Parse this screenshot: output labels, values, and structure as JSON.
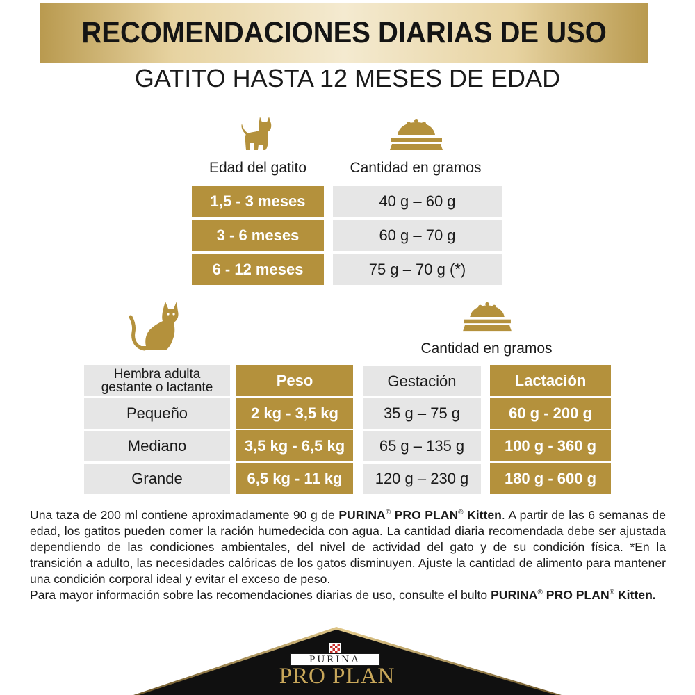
{
  "header": {
    "title": "RECOMENDACIONES DIARIAS DE USO",
    "subtitle": "GATITO HASTA 12 MESES DE EDAD"
  },
  "kitten_table": {
    "age_header": "Edad del gatito",
    "amount_header": "Cantidad en gramos",
    "rows": [
      {
        "age": "1,5 - 3 meses",
        "amount": "40 g – 60 g"
      },
      {
        "age": "3 - 6 meses",
        "amount": "60 g – 70 g"
      },
      {
        "age": "6 - 12 meses",
        "amount": "75 g – 70 g (*)"
      }
    ]
  },
  "adult_table": {
    "amount_header": "Cantidad en gramos",
    "col_female": "Hembra adulta gestante o lactante",
    "col_weight": "Peso",
    "col_gestation": "Gestación",
    "col_lactation": "Lactación",
    "rows": [
      {
        "size": "Pequeño",
        "weight": "2 kg - 3,5 kg",
        "gestation": "35 g – 75 g",
        "lactation": "60 g -  200 g"
      },
      {
        "size": "Mediano",
        "weight": "3,5 kg - 6,5 kg",
        "gestation": "65 g – 135 g",
        "lactation": "100 g - 360 g"
      },
      {
        "size": "Grande",
        "weight": "6,5 kg - 11 kg",
        "gestation": "120 g – 230 g",
        "lactation": "180 g - 600 g"
      }
    ]
  },
  "notes": {
    "p1_a": "Una taza de 200 ml contiene aproximadamente 90 g de ",
    "brand_1": "PURINA",
    "reg_1": "®",
    "brand_2": "PRO PLAN",
    "reg_2": "®",
    "product": "Kitten",
    "p1_b": ". A partir de las 6 semanas de edad, los gatitos pueden comer la ración humedecida con agua. La cantidad diaria recomendada debe ser ajustada dependiendo de las condiciones ambientales, del nivel de actividad del gato y de su condición física. *En la transición a adulto, las necesidades calóricas de los gatos disminuyen. Ajuste la cantidad de alimento para mantener una condición corporal ideal y evitar el exceso de peso.",
    "p2_a": "Para mayor información sobre las recomendaciones diarias de uso, consulte el bulto ",
    "brand_3": "PURINA",
    "reg_3": "®",
    "brand_4": "PRO PLAN",
    "reg_4": "®",
    "product_2": "Kitten."
  },
  "logo": {
    "brand_small": "PURINA",
    "brand_main": "PRO PLAN"
  },
  "colors": {
    "gold": "#b4913c",
    "grey_cell": "#e6e6e6",
    "banner_gold": "#e7d3a1",
    "footer_dark": "#101010"
  },
  "icons": [
    "kitten-icon",
    "food-bowl-icon",
    "adult-cat-icon",
    "purina-checkerboard-icon"
  ]
}
